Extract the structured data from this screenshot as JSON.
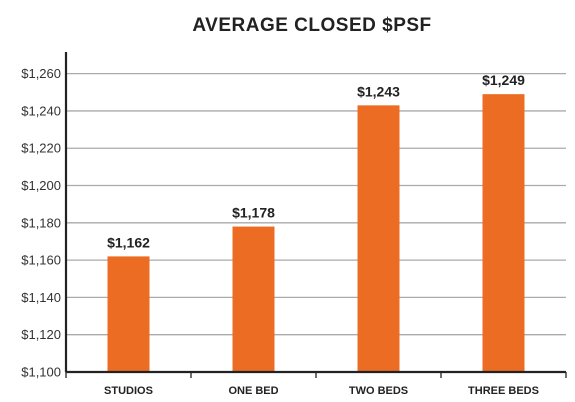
{
  "chart_data": {
    "type": "bar",
    "title": "AVERAGE CLOSED $PSF",
    "xlabel": "",
    "ylabel": "",
    "categories": [
      "STUDIOS",
      "ONE BED",
      "TWO BEDS",
      "THREE BEDS"
    ],
    "values": [
      1162,
      1178,
      1243,
      1249
    ],
    "data_labels": [
      "$1,162",
      "$1,178",
      "$1,243",
      "$1,249"
    ],
    "ylim": [
      1100,
      1270
    ],
    "yticks": [
      1100,
      1120,
      1140,
      1160,
      1180,
      1200,
      1220,
      1240,
      1260
    ],
    "ytick_labels": [
      "$1,100",
      "$1,120",
      "$1,140",
      "$1,160",
      "$1,180",
      "$1,200",
      "$1,220",
      "$1,240",
      "$1,260"
    ],
    "grid": true,
    "legend": "none",
    "colors": {
      "bar": "#ec6c24",
      "grid": "#aaaaaa",
      "axis": "#222222",
      "text": "#222222"
    }
  }
}
